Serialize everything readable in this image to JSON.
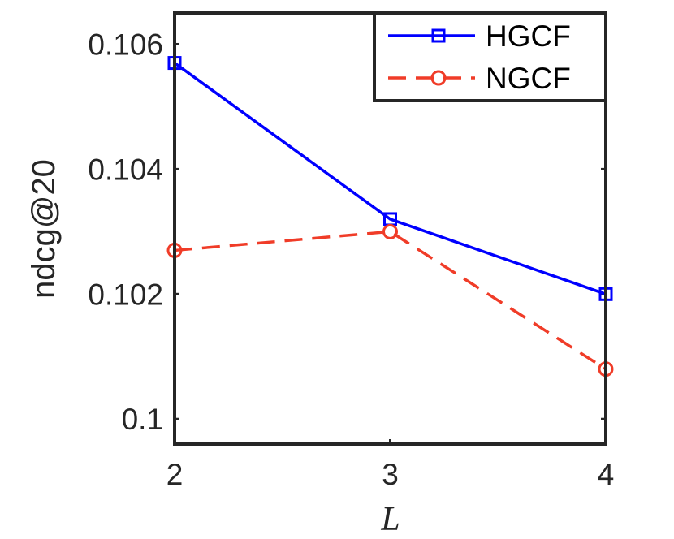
{
  "chart_data": {
    "type": "line",
    "x": [
      2,
      3,
      4
    ],
    "x_ticks": [
      "2",
      "3",
      "4"
    ],
    "xlim": [
      2,
      4
    ],
    "ylim": [
      0.0996,
      0.1065
    ],
    "y_ticks": [
      0.1,
      0.102,
      0.104,
      0.106
    ],
    "y_tick_labels": [
      "0.1",
      "0.102",
      "0.104",
      "0.106"
    ],
    "xlabel": "L",
    "ylabel": "ndcg@20",
    "grid": false,
    "legend_position": "top-right",
    "series": [
      {
        "name": "HGCF",
        "values": [
          0.1057,
          0.1032,
          0.102
        ],
        "color": "#0000ff",
        "line_style": "solid",
        "marker": "square"
      },
      {
        "name": "NGCF",
        "values": [
          0.1027,
          0.103,
          0.1008
        ],
        "color": "#f03c28",
        "line_style": "dashed",
        "marker": "circle"
      }
    ]
  }
}
